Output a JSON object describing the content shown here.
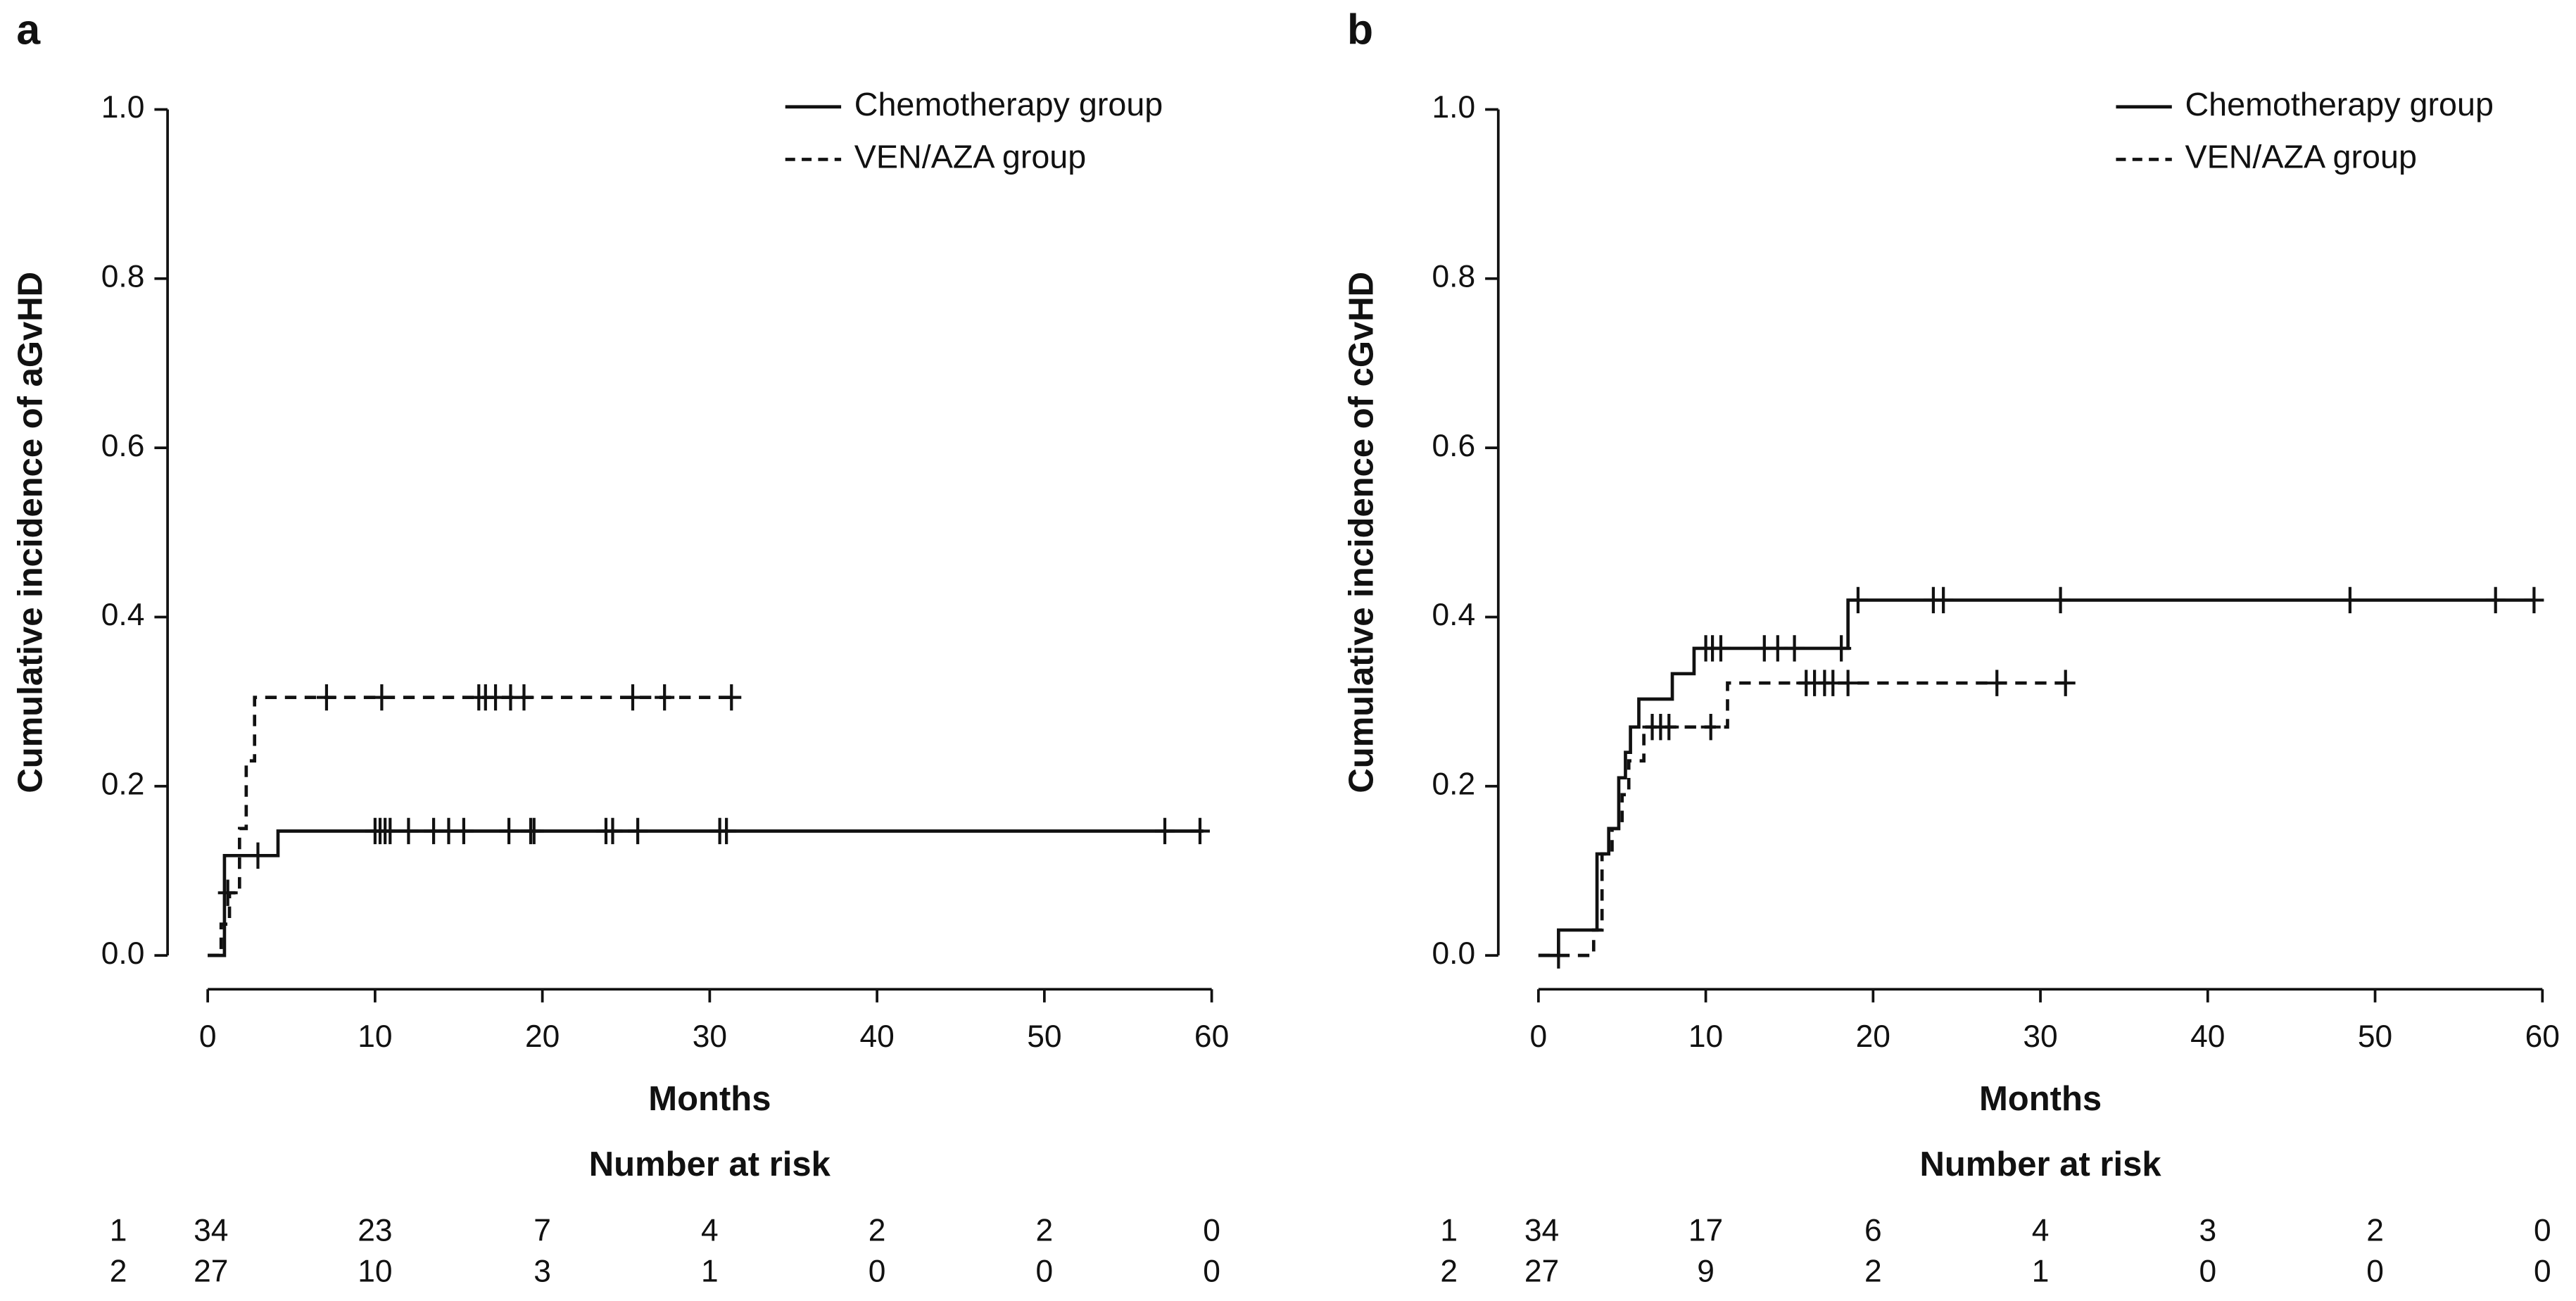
{
  "chart_data": [
    {
      "type": "step",
      "panel_label": "a",
      "ylabel": "Cumulative incidence of aGvHD",
      "xlabel": "Months",
      "xlim": [
        -2.4,
        62.4
      ],
      "ylim": [
        -0.04,
        1.04
      ],
      "xticks": [
        0,
        10,
        20,
        30,
        40,
        50,
        60
      ],
      "yticks": [
        {
          "value": 0,
          "label": "0.0"
        },
        0.2,
        0.4,
        0.6,
        0.8,
        {
          "value": 1,
          "label": "1.0"
        }
      ],
      "series": [
        {
          "name": "Chemotherapy group",
          "color": "#111111",
          "line_style": "solid",
          "x": [
            0,
            1.0,
            4.2,
            59.5
          ],
          "values": [
            0,
            0.118,
            0.147,
            0.147
          ],
          "censor_x": [
            3.0,
            10,
            10.3,
            10.6,
            10.9,
            12,
            13.5,
            14.4,
            15.3,
            18,
            19.3,
            19.5,
            23.8,
            24.2,
            25.7,
            30.6,
            31,
            57.2,
            59.3
          ],
          "censor_values": [
            0.118,
            0.147,
            0.147,
            0.147,
            0.147,
            0.147,
            0.147,
            0.147,
            0.147,
            0.147,
            0.147,
            0.147,
            0.147,
            0.147,
            0.147,
            0.147,
            0.147,
            0.147,
            0.147
          ]
        },
        {
          "name": "VEN/AZA group",
          "color": "#111111",
          "line_style": "dashed",
          "x": [
            0,
            0.8,
            1.3,
            1.9,
            2.3,
            2.8,
            31.3
          ],
          "values": [
            0,
            0.037,
            0.074,
            0.15,
            0.23,
            0.305,
            0.305
          ],
          "censor_x": [
            1.2,
            7.1,
            10.4,
            16.2,
            16.6,
            17.2,
            18.1,
            18.9,
            25.4,
            27.3,
            31.3
          ],
          "censor_values": [
            0.074,
            0.305,
            0.305,
            0.305,
            0.305,
            0.305,
            0.305,
            0.305,
            0.305,
            0.305,
            0.305
          ]
        }
      ],
      "risk_table": {
        "title": "Number at risk",
        "rows": [
          {
            "label": "1",
            "values": [
              34,
              23,
              7,
              4,
              2,
              2,
              0
            ]
          },
          {
            "label": "2",
            "values": [
              27,
              10,
              3,
              1,
              0,
              0,
              0
            ]
          }
        ]
      }
    },
    {
      "type": "step",
      "panel_label": "b",
      "ylabel": "Cumulative incidence of cGvHD",
      "xlabel": "Months",
      "xlim": [
        -2.4,
        62.4
      ],
      "ylim": [
        -0.04,
        1.04
      ],
      "xticks": [
        0,
        10,
        20,
        30,
        40,
        50,
        60
      ],
      "yticks": [
        {
          "value": 0,
          "label": "0.0"
        },
        0.2,
        0.4,
        0.6,
        0.8,
        {
          "value": 1,
          "label": "1.0"
        }
      ],
      "series": [
        {
          "name": "Chemotherapy group",
          "color": "#111111",
          "line_style": "solid",
          "x": [
            0,
            1.2,
            3.5,
            4.2,
            4.8,
            5.2,
            5.5,
            6.0,
            8.0,
            9.3,
            18.5,
            59.5
          ],
          "values": [
            0,
            0.03,
            0.12,
            0.15,
            0.21,
            0.24,
            0.27,
            0.303,
            0.333,
            0.363,
            0.42,
            0.42
          ],
          "censor_x": [
            10,
            10.4,
            10.9,
            13.5,
            14.3,
            15.3,
            18.1,
            19.1,
            23.6,
            24.2,
            31.2,
            48.5,
            57.2,
            59.5
          ],
          "censor_values": [
            0.363,
            0.363,
            0.363,
            0.363,
            0.363,
            0.363,
            0.363,
            0.42,
            0.42,
            0.42,
            0.42,
            0.42,
            0.42,
            0.42
          ]
        },
        {
          "name": "VEN/AZA group",
          "color": "#111111",
          "line_style": "dashed",
          "x": [
            0,
            3.3,
            3.8,
            4.4,
            5.0,
            5.4,
            6.3,
            11.3,
            31.5
          ],
          "values": [
            0,
            0.03,
            0.12,
            0.15,
            0.19,
            0.23,
            0.27,
            0.322,
            0.322
          ],
          "censor_x": [
            1.2,
            6.8,
            7.3,
            7.8,
            10.3,
            16,
            16.5,
            17.1,
            17.6,
            18.5,
            27.4,
            31.5
          ],
          "censor_values": [
            0,
            0.27,
            0.27,
            0.27,
            0.27,
            0.322,
            0.322,
            0.322,
            0.322,
            0.322,
            0.322,
            0.322
          ]
        }
      ],
      "risk_table": {
        "title": "Number at risk",
        "rows": [
          {
            "label": "1",
            "values": [
              34,
              17,
              6,
              4,
              3,
              2,
              0
            ]
          },
          {
            "label": "2",
            "values": [
              27,
              9,
              2,
              1,
              0,
              0,
              0
            ]
          }
        ]
      }
    }
  ]
}
